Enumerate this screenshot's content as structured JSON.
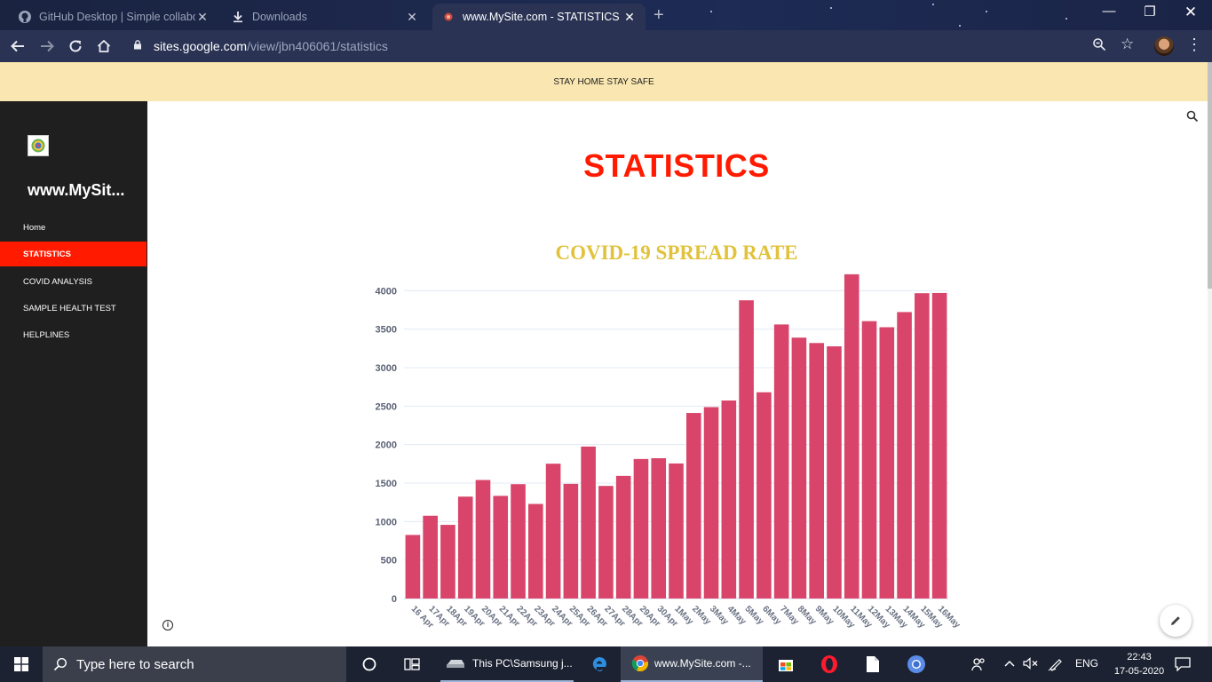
{
  "browser": {
    "tabs": [
      {
        "title": "GitHub Desktop | Simple collabo",
        "icon": "github-icon"
      },
      {
        "title": "Downloads",
        "icon": "download-icon"
      },
      {
        "title": "www.MySite.com - STATISTICS",
        "icon": "site-favicon-icon",
        "active": true
      }
    ],
    "new_tab_label": "+",
    "url_host": "sites.google.com",
    "url_path": "/view/jbn406061/statistics"
  },
  "banner": {
    "text": "STAY HOME STAY SAFE"
  },
  "sidebar": {
    "site_title": "www.MySit...",
    "items": [
      {
        "label": "Home"
      },
      {
        "label": "STATISTICS",
        "active": true
      },
      {
        "label": "COVID ANALYSIS"
      },
      {
        "label": "SAMPLE HEALTH TEST"
      },
      {
        "label": "HELPLINES"
      }
    ]
  },
  "main": {
    "page_title": "STATISTICS"
  },
  "chart_data": {
    "type": "bar",
    "title": "COVID-19 SPREAD RATE",
    "xlabel": "",
    "ylabel": "",
    "ylim": [
      0,
      4200
    ],
    "yticks": [
      0,
      500,
      1000,
      1500,
      2000,
      2500,
      3000,
      3500,
      4000
    ],
    "grid": true,
    "color": "#d9456a",
    "title_color": "#e1c23a",
    "categories": [
      "16 Apr",
      "17Apr",
      "18Apr",
      "19Apr",
      "20Apr",
      "21Apr",
      "22Apr",
      "23Apr",
      "24Apr",
      "25Apr",
      "26Apr",
      "27Apr",
      "28Apr",
      "29Apr",
      "30Apr",
      "1May",
      "2May",
      "3May",
      "4May",
      "5May",
      "6May",
      "7May",
      "8May",
      "9May",
      "10May",
      "11May",
      "12May",
      "13May",
      "14May",
      "15May",
      "16May"
    ],
    "values": [
      826,
      1076,
      957,
      1324,
      1540,
      1334,
      1486,
      1229,
      1752,
      1490,
      1975,
      1463,
      1594,
      1813,
      1823,
      1755,
      2411,
      2487,
      2573,
      3875,
      2680,
      3561,
      3390,
      3320,
      3277,
      4213,
      3604,
      3525,
      3722,
      3967,
      3970
    ]
  },
  "taskbar": {
    "search_placeholder": "Type here to search",
    "explorer_label": "This PC\\Samsung j...",
    "chrome_label": "www.MySite.com -...",
    "language": "ENG",
    "time": "22:43",
    "date": "17-05-2020"
  }
}
